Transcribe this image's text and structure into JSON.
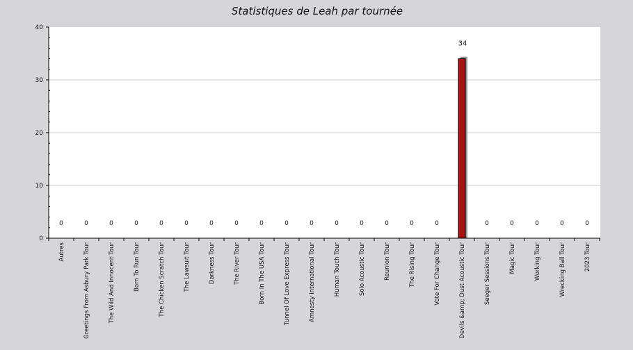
{
  "chart_data": {
    "type": "bar",
    "title": "Statistiques de Leah par tournée",
    "xlabel": "",
    "ylabel": "",
    "ylim": [
      0,
      40
    ],
    "yticks": [
      0,
      10,
      20,
      30,
      40
    ],
    "grid": true,
    "categories": [
      "Autres",
      "Greetings From Asbury Park Tour",
      "The Wild And Innocent Tour",
      "Born To Run Tour",
      "The Chicken Scratch Tour",
      "The Lawsuit Tour",
      "Darkness Tour",
      "The River Tour",
      "Born In The USA Tour",
      "Tunnel Of Love Express Tour",
      "Amnesty International Tour",
      "Human Touch Tour",
      "Solo Acoustic Tour",
      "Reunion Tour",
      "The Rising Tour",
      "Vote For Change Tour",
      "Devils &amp; Dust Acoustic Tour",
      "Seeger Sessions Tour",
      "Magic Tour",
      "Working Tour",
      "Wrecking Ball Tour",
      "2023 Tour"
    ],
    "values": [
      0,
      0,
      0,
      0,
      0,
      0,
      0,
      0,
      0,
      0,
      0,
      0,
      0,
      0,
      0,
      0,
      34,
      0,
      0,
      0,
      0,
      0
    ],
    "bar_color": "#aa1111",
    "shadow_color": "#9a9a9a",
    "plot_background": "#ffffff",
    "grid_color": "#cccccc"
  }
}
